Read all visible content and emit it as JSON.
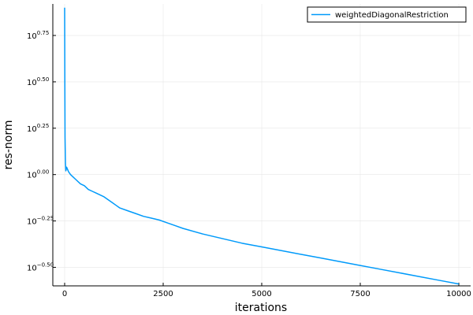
{
  "chart_data": {
    "type": "line",
    "xlabel": "iterations",
    "ylabel": "res-norm",
    "y_scale": "log10",
    "grid": true,
    "legend_position": "top-right",
    "xlim": [
      -300,
      10300
    ],
    "ylim_log10": [
      -0.6,
      0.92
    ],
    "x_ticks": [
      0,
      2500,
      5000,
      7500,
      10000
    ],
    "x_tick_labels": [
      "0",
      "2500",
      "5000",
      "7500",
      "10000"
    ],
    "y_ticks_log10": [
      -0.5,
      -0.25,
      0.0,
      0.25,
      0.5,
      0.75
    ],
    "y_tick_labels": [
      {
        "base": "10",
        "exp": "−0.50"
      },
      {
        "base": "10",
        "exp": "−0.25"
      },
      {
        "base": "10",
        "exp": "0.00"
      },
      {
        "base": "10",
        "exp": "0.25"
      },
      {
        "base": "10",
        "exp": "0.50"
      },
      {
        "base": "10",
        "exp": "0.75"
      }
    ],
    "series": [
      {
        "name": "weightedDiagonalRestriction",
        "color": "#009AFA",
        "x": [
          0,
          5,
          10,
          20,
          30,
          50,
          100,
          150,
          200,
          300,
          400,
          500,
          600,
          700,
          800,
          900,
          1000,
          1100,
          1200,
          1300,
          1400,
          1600,
          1800,
          2000,
          2200,
          2400,
          2600,
          2800,
          3000,
          3500,
          4000,
          4500,
          5000,
          5500,
          6000,
          6500,
          7000,
          7500,
          8000,
          8500,
          9000,
          9500,
          10000
        ],
        "y_log10": [
          0.9,
          0.5,
          0.2,
          0.06,
          0.02,
          0.04,
          0.015,
          0.0,
          -0.01,
          -0.03,
          -0.05,
          -0.06,
          -0.08,
          -0.09,
          -0.1,
          -0.11,
          -0.12,
          -0.135,
          -0.15,
          -0.165,
          -0.18,
          -0.195,
          -0.21,
          -0.225,
          -0.235,
          -0.245,
          -0.26,
          -0.275,
          -0.29,
          -0.32,
          -0.345,
          -0.37,
          -0.39,
          -0.41,
          -0.43,
          -0.45,
          -0.47,
          -0.49,
          -0.51,
          -0.53,
          -0.55,
          -0.57,
          -0.59
        ]
      }
    ]
  }
}
